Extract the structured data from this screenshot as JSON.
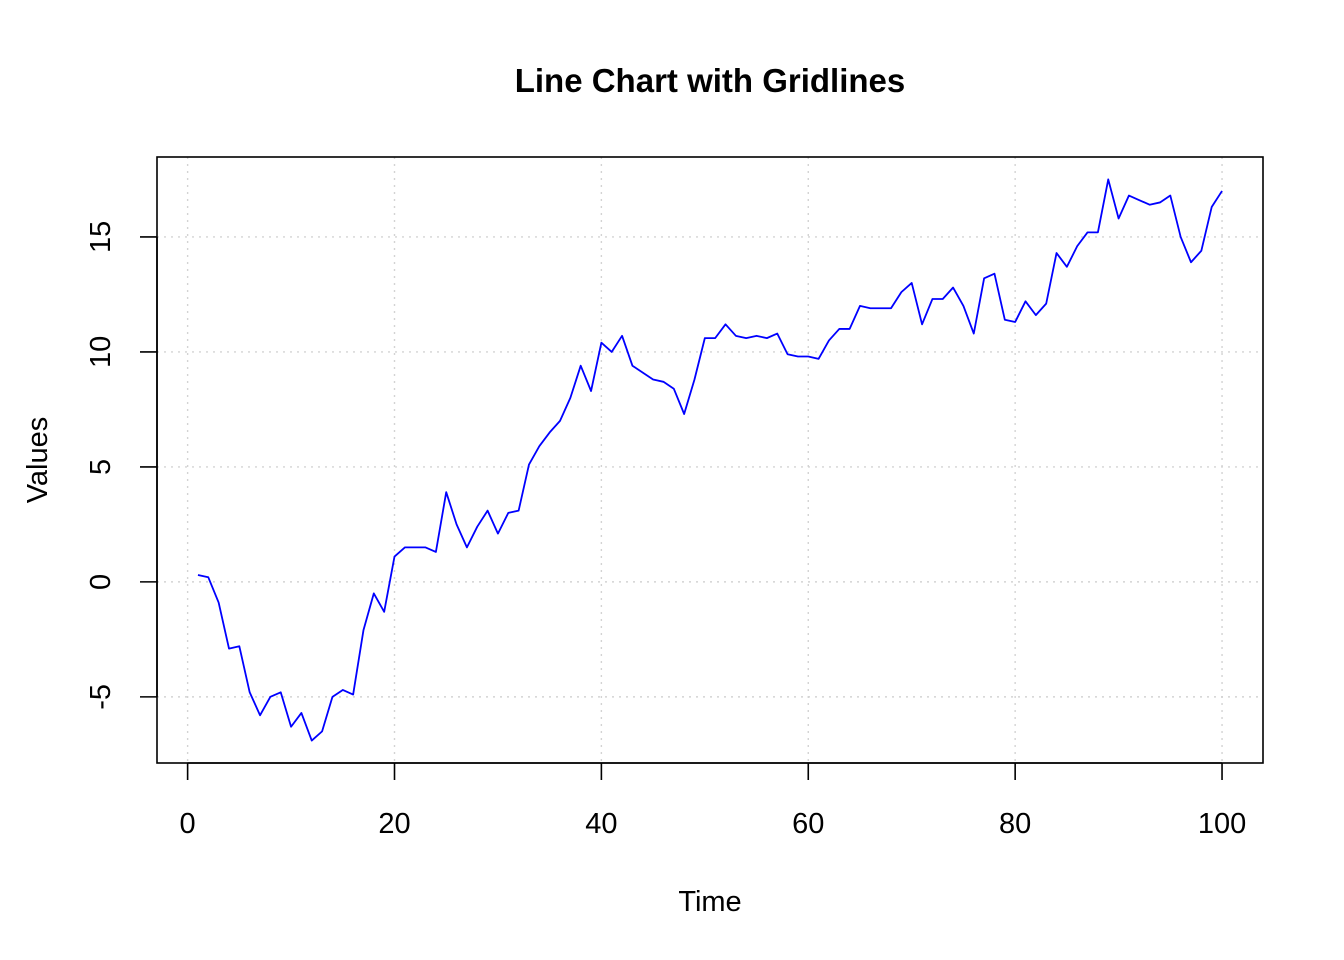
{
  "chart_data": {
    "type": "line",
    "title": "Line Chart with Gridlines",
    "xlabel": "Time",
    "ylabel": "Values",
    "xlim": [
      1,
      100
    ],
    "ylim": [
      -6.9,
      17.5
    ],
    "x_ticks": [
      0,
      20,
      40,
      60,
      80,
      100
    ],
    "y_ticks": [
      -5,
      0,
      5,
      10,
      15
    ],
    "x_tick_labels": [
      "0",
      "20",
      "40",
      "60",
      "80",
      "100"
    ],
    "y_tick_labels": [
      "-5",
      "0",
      "5",
      "10",
      "15"
    ],
    "grid": true,
    "legend": "none",
    "line_color": "#0000ff",
    "series": [
      {
        "x": [
          1,
          2,
          3,
          4,
          5,
          6,
          7,
          8,
          9,
          10,
          11,
          12,
          13,
          14,
          15,
          16,
          17,
          18,
          19,
          20,
          21,
          22,
          23,
          24,
          25,
          26,
          27,
          28,
          29,
          30,
          31,
          32,
          33,
          34,
          35,
          36,
          37,
          38,
          39,
          40,
          41,
          42,
          43,
          44,
          45,
          46,
          47,
          48,
          49,
          50,
          51,
          52,
          53,
          54,
          55,
          56,
          57,
          58,
          59,
          60,
          61,
          62,
          63,
          64,
          65,
          66,
          67,
          68,
          69,
          70,
          71,
          72,
          73,
          74,
          75,
          76,
          77,
          78,
          79,
          80,
          81,
          82,
          83,
          84,
          85,
          86,
          87,
          88,
          89,
          90,
          91,
          92,
          93,
          94,
          95,
          96,
          97,
          98,
          99,
          100
        ],
        "values": [
          0.3,
          0.2,
          -0.9,
          -2.9,
          -2.8,
          -4.8,
          -5.8,
          -5.0,
          -4.8,
          -6.3,
          -5.7,
          -6.9,
          -6.5,
          -5.0,
          -4.7,
          -4.9,
          -2.1,
          -0.5,
          -1.3,
          1.1,
          1.5,
          1.5,
          1.5,
          1.3,
          3.9,
          2.5,
          1.5,
          2.4,
          3.1,
          2.1,
          3.0,
          3.1,
          5.1,
          5.9,
          6.5,
          7.0,
          8.0,
          9.4,
          8.3,
          10.4,
          10.0,
          10.7,
          9.4,
          9.1,
          8.8,
          8.7,
          8.4,
          7.3,
          8.8,
          10.6,
          10.6,
          11.2,
          10.7,
          10.6,
          10.7,
          10.6,
          10.8,
          9.9,
          9.8,
          9.8,
          9.7,
          10.5,
          11.0,
          11.0,
          12.0,
          11.9,
          11.9,
          11.9,
          12.6,
          13.0,
          11.2,
          12.3,
          12.3,
          12.8,
          12.0,
          10.8,
          13.2,
          13.4,
          11.4,
          11.3,
          12.2,
          11.6,
          12.1,
          14.3,
          13.7,
          14.6,
          15.2,
          15.2,
          17.5,
          15.8,
          16.8,
          16.6,
          16.4,
          16.5,
          16.8,
          15.0,
          13.9,
          14.4,
          16.3,
          17.0
        ]
      }
    ]
  }
}
